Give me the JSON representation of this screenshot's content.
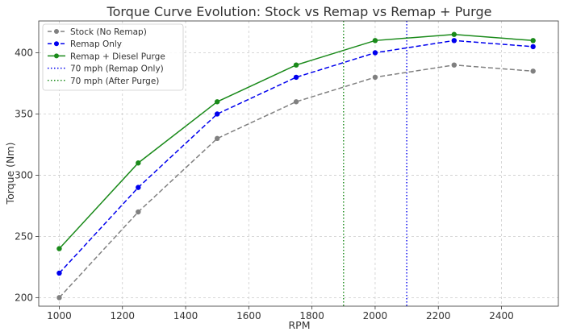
{
  "chart_data": {
    "type": "line",
    "title": "Torque Curve Evolution: Stock vs Remap vs Remap + Purge",
    "xlabel": "RPM",
    "ylabel": "Torque (Nm)",
    "xlim": [
      935,
      2580
    ],
    "ylim": [
      193,
      426
    ],
    "xticks": [
      "1000",
      "1200",
      "1400",
      "1600",
      "1800",
      "2000",
      "2200",
      "2400"
    ],
    "yticks": [
      "200",
      "250",
      "300",
      "350",
      "400"
    ],
    "grid": true,
    "legend_position": "top-left",
    "x": [
      1000,
      1250,
      1500,
      1750,
      2000,
      2250,
      2500
    ],
    "series": [
      {
        "name": "Stock (No Remap)",
        "values": [
          200,
          270,
          330,
          360,
          380,
          390,
          385
        ],
        "color": "#808080",
        "style": "dashed"
      },
      {
        "name": "Remap Only",
        "values": [
          220,
          290,
          350,
          380,
          400,
          410,
          405
        ],
        "color": "#0000ee",
        "style": "dashed"
      },
      {
        "name": "Remap + Diesel Purge",
        "values": [
          240,
          310,
          360,
          390,
          410,
          415,
          410
        ],
        "color": "#1a8a1a",
        "style": "solid"
      }
    ],
    "vlines": [
      {
        "name": "70 mph (Remap Only)",
        "x": 2100,
        "color": "#0000ee"
      },
      {
        "name": "70 mph (After Purge)",
        "x": 1900,
        "color": "#1a8a1a"
      }
    ]
  }
}
